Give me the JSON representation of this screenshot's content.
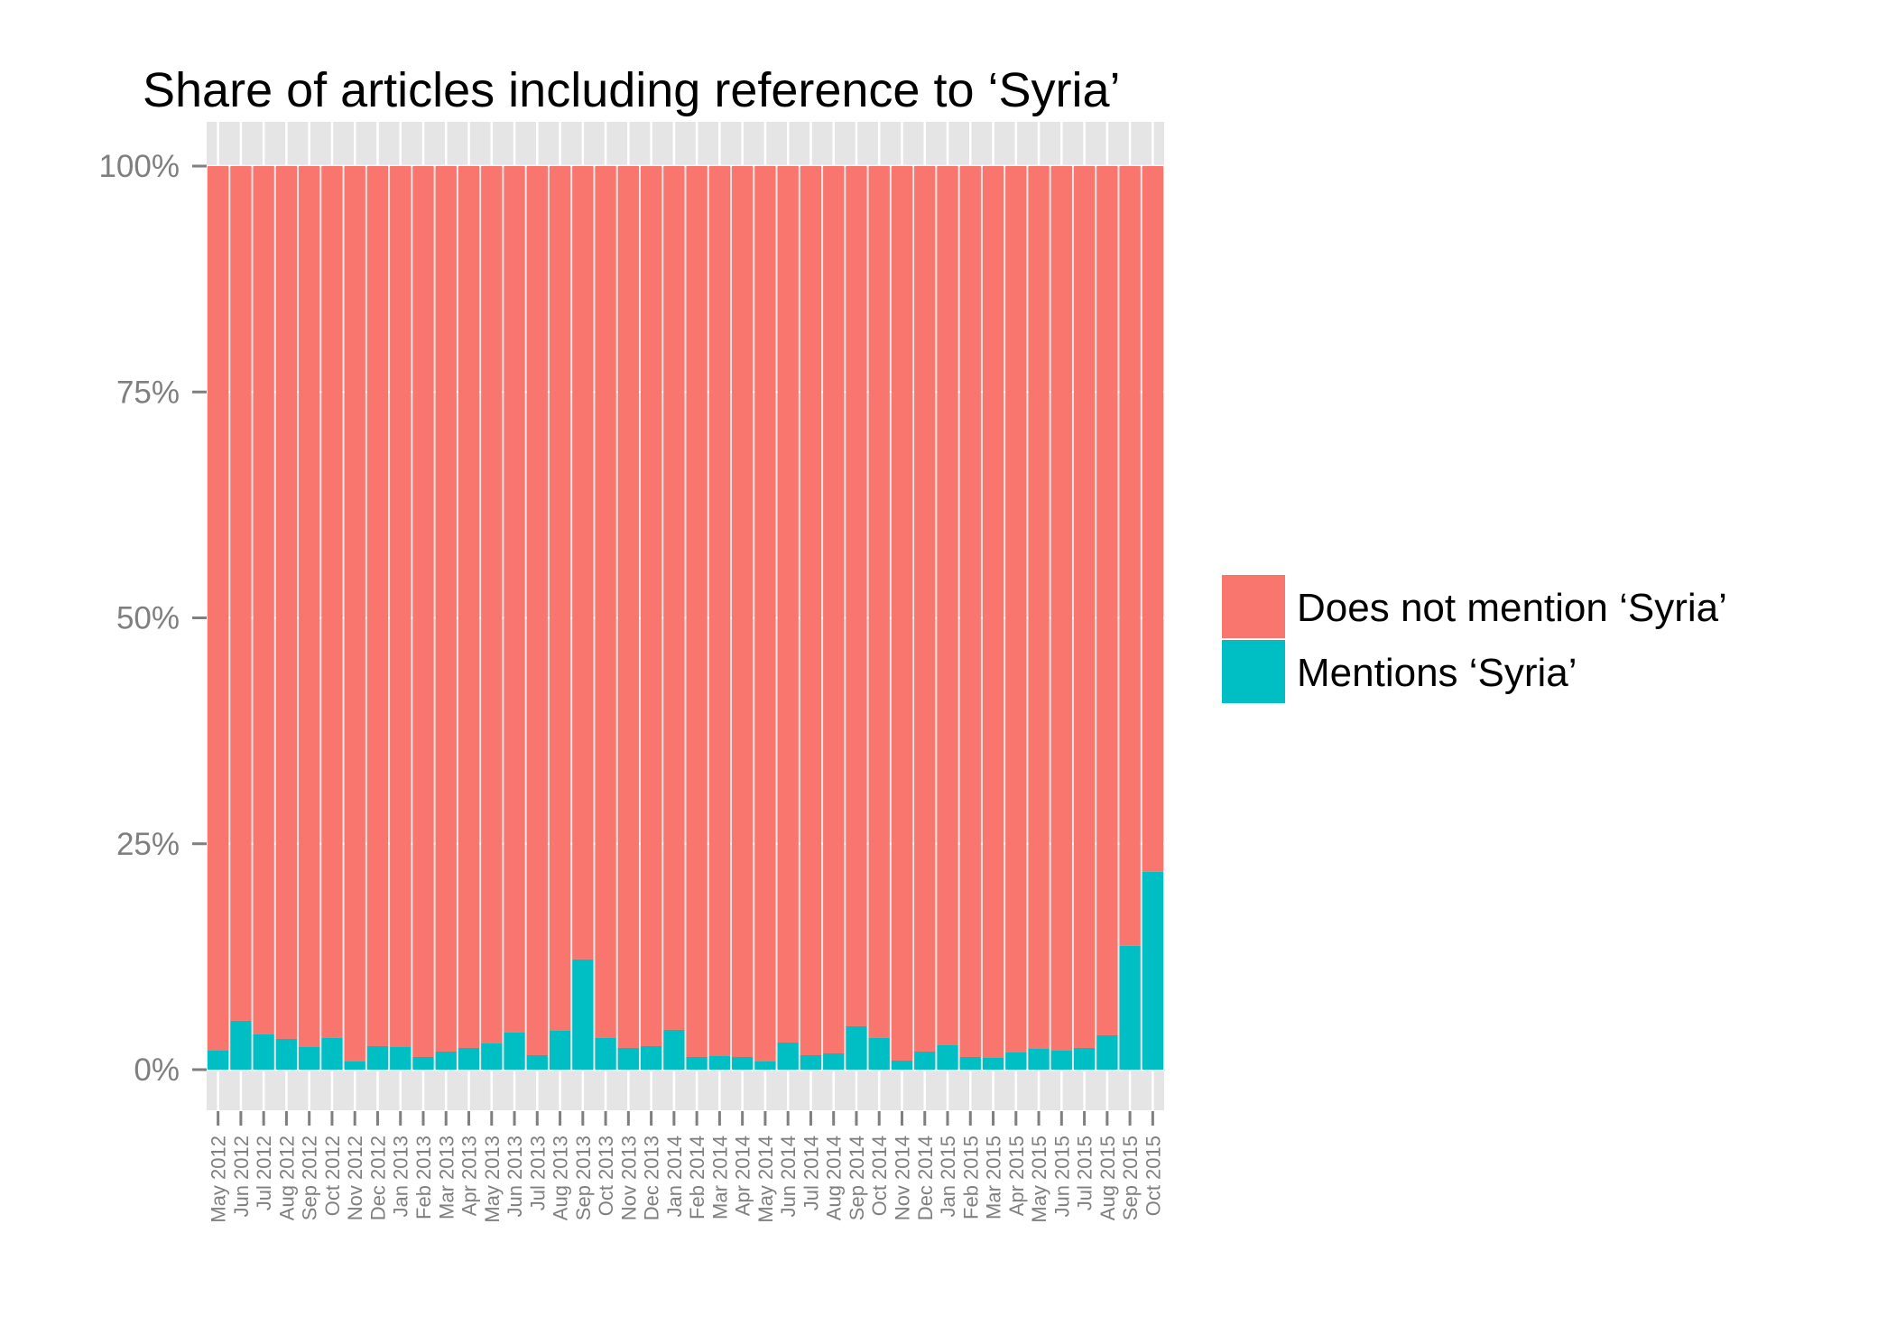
{
  "chart_data": {
    "type": "bar",
    "stacked": true,
    "title": "Share of articles including reference to ‘Syria’",
    "xlabel": "",
    "ylabel": "",
    "ylim": [
      0,
      100
    ],
    "y_ticks": [
      "0%",
      "25%",
      "50%",
      "75%",
      "100%"
    ],
    "y_tick_values": [
      0,
      25,
      50,
      75,
      100
    ],
    "grid": true,
    "legend_position": "right",
    "categories": [
      "May 2012",
      "Jun 2012",
      "Jul 2012",
      "Aug 2012",
      "Sep 2012",
      "Oct 2012",
      "Nov 2012",
      "Dec 2012",
      "Jan 2013",
      "Feb 2013",
      "Mar 2013",
      "Apr 2013",
      "May 2013",
      "Jun 2013",
      "Jul 2013",
      "Aug 2013",
      "Sep 2013",
      "Oct 2013",
      "Nov 2013",
      "Dec 2013",
      "Jan 2014",
      "Feb 2014",
      "Mar 2014",
      "Apr 2014",
      "May 2014",
      "Jun 2014",
      "Jul 2014",
      "Aug 2014",
      "Sep 2014",
      "Oct 2014",
      "Nov 2014",
      "Dec 2014",
      "Jan 2015",
      "Feb 2015",
      "Mar 2015",
      "Apr 2015",
      "May 2015",
      "Jun 2015",
      "Jul 2015",
      "Aug 2015",
      "Sep 2015",
      "Oct 2015"
    ],
    "series": [
      {
        "name": "Mentions ‘Syria’",
        "color": "#00BFC4",
        "values": [
          2.1,
          5.4,
          3.9,
          3.4,
          2.5,
          3.5,
          0.9,
          2.6,
          2.5,
          1.4,
          2.0,
          2.4,
          2.9,
          4.1,
          1.6,
          4.3,
          12.2,
          3.5,
          2.4,
          2.6,
          4.4,
          1.4,
          1.5,
          1.4,
          0.9,
          3.0,
          1.6,
          1.8,
          4.8,
          3.5,
          1.0,
          2.0,
          2.7,
          1.4,
          1.3,
          1.9,
          2.3,
          2.1,
          2.4,
          3.8,
          13.7,
          21.9
        ]
      },
      {
        "name": "Does not mention ‘Syria’",
        "color": "#F8766D",
        "values": [
          97.9,
          94.6,
          96.1,
          96.6,
          97.5,
          96.5,
          99.1,
          97.4,
          97.5,
          98.6,
          98.0,
          97.6,
          97.1,
          95.9,
          98.4,
          95.7,
          87.8,
          96.5,
          97.6,
          97.4,
          95.6,
          98.6,
          98.5,
          98.6,
          99.1,
          97.0,
          98.4,
          98.2,
          95.2,
          96.5,
          99.0,
          98.0,
          97.3,
          98.6,
          98.7,
          98.1,
          97.7,
          97.9,
          97.6,
          96.2,
          86.3,
          78.1
        ]
      }
    ],
    "legend": [
      {
        "label": "Does not mention ‘Syria’",
        "color": "#F8766D"
      },
      {
        "label": "Mentions ‘Syria’",
        "color": "#00BFC4"
      }
    ]
  },
  "colors": {
    "panel_background": "#E5E5E5",
    "grid_line": "#FFFFFF",
    "tick_color": "#7F7F7F"
  }
}
